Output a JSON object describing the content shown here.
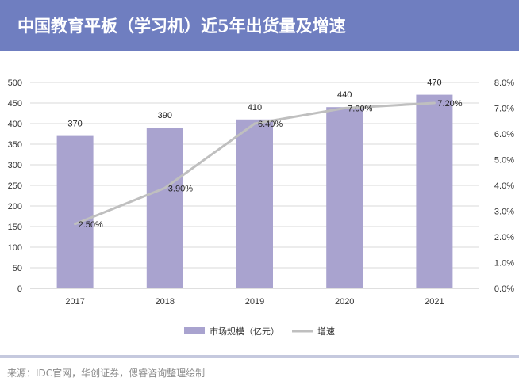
{
  "header": {
    "title": "中国教育平板（学习机）近5年出货量及增速"
  },
  "footer": {
    "source": "来源：IDC官网，华创证券，偲睿咨询整理绘制"
  },
  "colors": {
    "header_bg": "#6f7ec0",
    "bar": "#a9a3cf",
    "line": "#bfbfbf",
    "grid": "#d9d9d9"
  },
  "chart_data": {
    "type": "bar",
    "categories": [
      "2017",
      "2018",
      "2019",
      "2020",
      "2021"
    ],
    "series": [
      {
        "name": "市场规模（亿元）",
        "type": "bar",
        "axis": "left",
        "values": [
          370,
          390,
          410,
          440,
          470
        ],
        "labels": [
          "370",
          "390",
          "410",
          "440",
          "470"
        ]
      },
      {
        "name": "增速",
        "type": "line",
        "axis": "right",
        "values": [
          2.5,
          3.9,
          6.4,
          7.0,
          7.2
        ],
        "labels": [
          "2.50%",
          "3.90%",
          "6.40%",
          "7.00%",
          "7.20%"
        ]
      }
    ],
    "y_left": {
      "min": 0,
      "max": 500,
      "ticks": [
        "0",
        "50",
        "100",
        "150",
        "200",
        "250",
        "300",
        "350",
        "400",
        "450",
        "500"
      ]
    },
    "y_right": {
      "min": 0,
      "max": 8,
      "ticks": [
        "0.0%",
        "1.0%",
        "2.0%",
        "3.0%",
        "4.0%",
        "5.0%",
        "6.0%",
        "7.0%",
        "8.0%"
      ]
    },
    "grid": true,
    "legend": "bottom"
  }
}
